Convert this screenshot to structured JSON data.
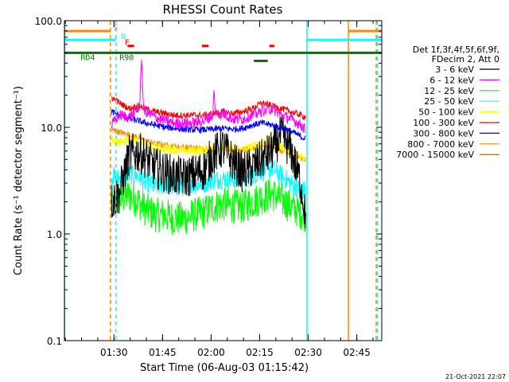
{
  "chart_data": {
    "type": "line",
    "title": "RHESSI Count Rates",
    "xlabel": "Start Time (06-Aug-03 01:15:42)",
    "ylabel": "Count Rate (s⁻¹ detector segment⁻¹)",
    "yscale": "log",
    "ylim": [
      0.1,
      100.0
    ],
    "xlim_minutes": [
      -1.0,
      97.0
    ],
    "x_ticks": [
      {
        "label": "01:30",
        "x": 14.3
      },
      {
        "label": "01:45",
        "x": 29.3
      },
      {
        "label": "02:00",
        "x": 44.3
      },
      {
        "label": "02:15",
        "x": 59.3
      },
      {
        "label": "02:30",
        "x": 74.3
      },
      {
        "label": "02:45",
        "x": 89.3
      }
    ],
    "y_ticks": [
      {
        "label": "100.0",
        "v": 100
      },
      {
        "label": "10.0",
        "v": 10
      },
      {
        "label": "1.0",
        "v": 1
      },
      {
        "label": "0.1",
        "v": 0.1
      }
    ],
    "legend_header": [
      "Det 1f,3f,4f,5f,6f,9f,",
      "FDecim 2, Att 0"
    ],
    "data_start_min": 13.5,
    "data_end_min": 73.5,
    "series": [
      {
        "name": "3 - 6 keV",
        "color": "#000000",
        "x": [
          13.5,
          16,
          19,
          22,
          24,
          27,
          30,
          33,
          36,
          39,
          42,
          45,
          48,
          51,
          54,
          57,
          60,
          63,
          66,
          69,
          72,
          73.5
        ],
        "values": [
          2.0,
          2.4,
          5.5,
          5.8,
          5.2,
          4.2,
          3.8,
          3.5,
          3.4,
          3.6,
          4.0,
          5.5,
          6.5,
          4.8,
          3.8,
          4.2,
          5.0,
          6.0,
          8.5,
          6.0,
          3.0,
          1.4
        ],
        "noise": 0.45
      },
      {
        "name": "6 - 12 keV",
        "color": "#ff00ff",
        "x": [
          13.5,
          16,
          19,
          22,
          24,
          27,
          30,
          33,
          36,
          39,
          42,
          45,
          48,
          51,
          54,
          57,
          60,
          63,
          66,
          69,
          72,
          73.5
        ],
        "values": [
          10.5,
          13,
          12.5,
          15,
          14,
          12.5,
          11.5,
          11,
          11,
          11,
          11.5,
          13,
          13.5,
          12,
          12,
          13,
          14,
          15,
          13,
          12,
          10.5,
          9.5
        ],
        "noise": 0.12,
        "spikes": [
          {
            "x": 22.8,
            "v": 48
          },
          {
            "x": 45.2,
            "v": 24
          },
          {
            "x": 60.1,
            "v": 19
          }
        ]
      },
      {
        "name": "12 - 25 keV",
        "color": "#00ff00",
        "x": [
          13.5,
          16,
          19,
          22,
          24,
          27,
          30,
          33,
          36,
          39,
          42,
          45,
          48,
          51,
          54,
          57,
          60,
          63,
          66,
          69,
          72,
          73.5
        ],
        "values": [
          1.9,
          2.1,
          2.3,
          2.0,
          1.7,
          1.5,
          1.5,
          1.4,
          1.4,
          1.5,
          1.6,
          1.8,
          1.9,
          1.8,
          1.8,
          2.0,
          2.2,
          2.4,
          2.1,
          1.8,
          1.6,
          1.5
        ],
        "noise": 0.38
      },
      {
        "name": "25 - 50 keV",
        "color": "#00ffff",
        "x": [
          13.5,
          16,
          19,
          22,
          24,
          27,
          30,
          33,
          36,
          39,
          42,
          45,
          48,
          51,
          54,
          57,
          60,
          63,
          66,
          69,
          72,
          73.5
        ],
        "values": [
          3.5,
          3.3,
          3.6,
          3.5,
          3.0,
          2.8,
          2.9,
          2.8,
          2.8,
          2.9,
          3.0,
          3.2,
          3.3,
          3.2,
          3.3,
          3.5,
          3.9,
          4.2,
          3.5,
          3.0,
          2.6,
          2.5
        ],
        "noise": 0.22
      },
      {
        "name": "50 - 100 keV",
        "color": "#ffff00",
        "x": [
          13.5,
          16,
          19,
          22,
          24,
          27,
          30,
          33,
          36,
          39,
          42,
          45,
          48,
          51,
          54,
          57,
          60,
          63,
          66,
          69,
          72,
          73.5
        ],
        "values": [
          7.5,
          7.2,
          7.8,
          7.5,
          6.8,
          6.5,
          6.3,
          6.2,
          6.0,
          6.0,
          6.2,
          6.4,
          6.5,
          6.3,
          6.2,
          6.6,
          7.2,
          7.8,
          6.6,
          6.0,
          5.4,
          5.2
        ],
        "noise": 0.1
      },
      {
        "name": "100 - 300 keV",
        "color": "#ff0000",
        "x": [
          13.5,
          16,
          19,
          22,
          24,
          27,
          30,
          33,
          36,
          39,
          42,
          45,
          48,
          51,
          54,
          57,
          60,
          63,
          66,
          69,
          72,
          73.5
        ],
        "values": [
          19,
          17,
          15,
          16,
          15,
          14,
          13.5,
          13,
          13,
          13,
          13,
          13.5,
          14,
          13.5,
          14,
          15,
          17,
          16,
          15,
          14,
          13,
          12.5
        ],
        "noise": 0.07
      },
      {
        "name": "300 - 800 keV",
        "color": "#0000ff",
        "x": [
          13.5,
          16,
          19,
          22,
          24,
          27,
          30,
          33,
          36,
          39,
          42,
          45,
          48,
          51,
          54,
          57,
          60,
          63,
          66,
          69,
          72,
          73.5
        ],
        "values": [
          14,
          13,
          12,
          11.5,
          11,
          10.5,
          10,
          9.8,
          9.6,
          9.5,
          9.5,
          9.6,
          9.8,
          9.6,
          9.8,
          10.5,
          11,
          10.5,
          10,
          9.2,
          8.2,
          7.8
        ],
        "noise": 0.07
      },
      {
        "name": "800 - 7000 keV",
        "color": "#ff8800",
        "x": [
          13.5,
          16,
          19,
          22,
          24,
          27,
          30,
          33,
          36,
          39,
          42,
          45,
          48,
          51,
          54,
          57,
          60,
          63,
          66,
          69,
          72,
          73.5
        ],
        "values": [
          9.5,
          9,
          8.5,
          8,
          7.5,
          7,
          6.8,
          6.6,
          6.5,
          6.4,
          6.3,
          6.2,
          6.3,
          6.1,
          6.2,
          6.4,
          6.6,
          6.4,
          6.0,
          5.6,
          5.2,
          5.0
        ],
        "noise": 0.07
      },
      {
        "name": "7000 - 15000 keV",
        "color": "#996600",
        "x": [],
        "values": []
      }
    ],
    "vertical_lines": [
      {
        "x": 13.2,
        "color": "#ff8800",
        "style": "dashed"
      },
      {
        "x": 14.9,
        "color": "#00ffff",
        "style": "dashed"
      },
      {
        "x": 73.9,
        "color": "#00ffff",
        "style": "solid"
      },
      {
        "x": 86.7,
        "color": "#ff8800",
        "style": "solid"
      },
      {
        "x": 95.3,
        "color": "#ff8800",
        "style": "dashed"
      },
      {
        "x": -0.9,
        "color": "#00ffff",
        "style": "solid"
      },
      {
        "x": 95.6,
        "color": "#00ffff",
        "style": "dashed"
      }
    ],
    "flag_bars": [
      {
        "label": "S",
        "color": "#ff8800",
        "v": 80,
        "segments": [
          [
            -1.0,
            13.2
          ],
          [
            86.7,
            97.0
          ]
        ],
        "label_x": 14.0
      },
      {
        "label": "N",
        "color": "#00ffff",
        "v": 66,
        "segments": [
          [
            -1.0,
            14.9
          ],
          [
            73.9,
            97.0
          ]
        ],
        "label_x": 16.5
      },
      {
        "label": "F",
        "color": "#ff0000",
        "v": 58,
        "segments": [
          [
            18.5,
            20.5
          ],
          [
            41.5,
            43.5
          ],
          [
            62.3,
            63.8
          ]
        ],
        "label_x": 17.6
      },
      {
        "label": "RD4",
        "color": "#007700",
        "v": 50,
        "segments": [
          [
            -1.0,
            97.0
          ]
        ],
        "label_x": 4.0
      },
      {
        "label": "R90",
        "color": "#007700",
        "v": 42,
        "segments": [
          [
            57.5,
            61.8
          ]
        ],
        "label_x": 16.0
      }
    ]
  },
  "footer": {
    "timestamp": "21-Oct-2021 22:07"
  }
}
